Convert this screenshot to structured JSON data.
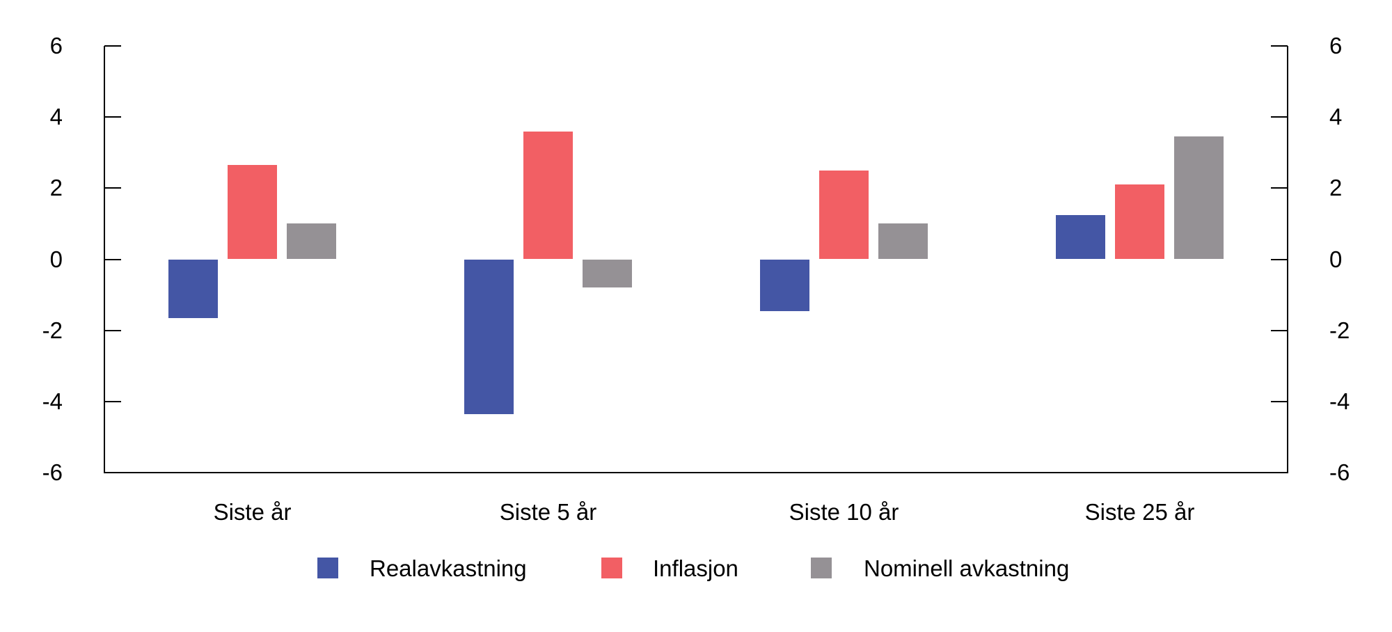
{
  "chart_data": {
    "type": "bar",
    "categories": [
      "Siste år",
      "Siste 5 år",
      "Siste 10 år",
      "Siste 25 år"
    ],
    "series": [
      {
        "name": "Realavkastning",
        "color": "#4456A5",
        "values": [
          -1.65,
          -4.35,
          -1.45,
          1.25
        ]
      },
      {
        "name": "Inflasjon",
        "color": "#F25F64",
        "values": [
          2.65,
          3.6,
          2.5,
          2.1
        ]
      },
      {
        "name": "Nominell avkastning",
        "color": "#959195",
        "values": [
          1.0,
          -0.8,
          1.0,
          3.45
        ]
      }
    ],
    "title": "",
    "xlabel": "",
    "ylabel": "",
    "ylim": [
      -6,
      6
    ],
    "yticks": [
      6,
      4,
      2,
      0,
      -2,
      -4,
      -6
    ],
    "grid": false,
    "dual_y_axis": true,
    "legend_position": "bottom",
    "axis_color": "#000000",
    "background_color": "#ffffff"
  }
}
